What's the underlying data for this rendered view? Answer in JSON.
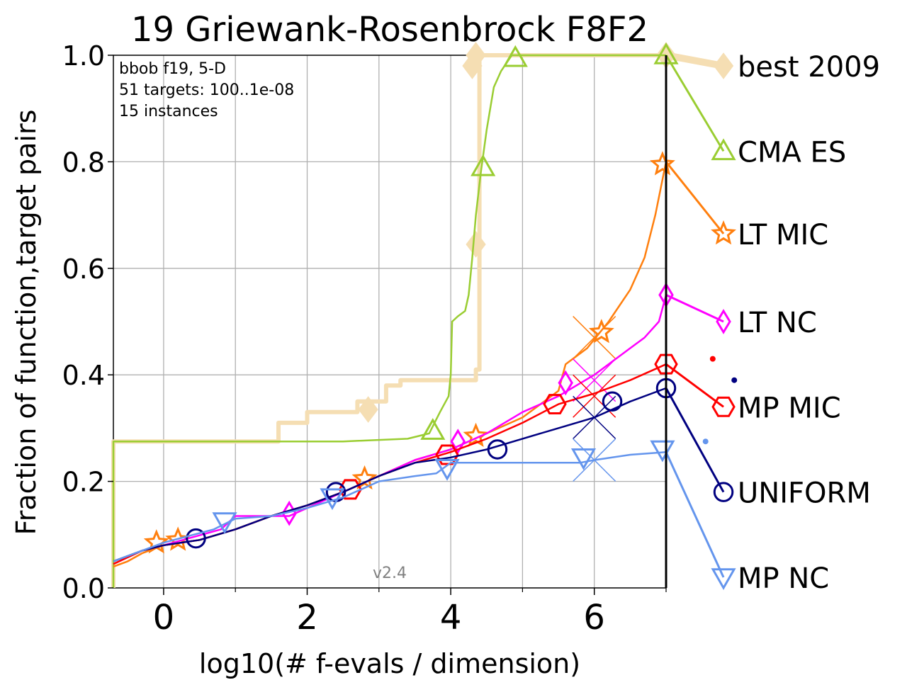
{
  "chart_data": {
    "type": "line",
    "title": "19 Griewank-Rosenbrock F8F2",
    "xlabel": "log10(# f-evals / dimension)",
    "ylabel": "Fraction of function,target pairs",
    "xlim": [
      -0.7,
      7.0
    ],
    "ylim": [
      0.0,
      1.0
    ],
    "xticks": [
      "0",
      "2",
      "4",
      "6"
    ],
    "yticks": [
      "0.0",
      "0.2",
      "0.4",
      "0.6",
      "0.8",
      "1.0"
    ],
    "grid": true,
    "info_lines": [
      "bbob f19, 5-D",
      "51 targets: 100..1e-08",
      "15 instances"
    ],
    "version": "v2.4",
    "budget_line_x": 7.0,
    "series": [
      {
        "name": "best 2009",
        "color": "#f5deb3",
        "marker": "diamond",
        "width": 6,
        "points": [
          [
            -0.7,
            0.0
          ],
          [
            -0.7,
            0.275
          ],
          [
            1.6,
            0.275
          ],
          [
            1.6,
            0.31
          ],
          [
            2.0,
            0.31
          ],
          [
            2.0,
            0.33
          ],
          [
            2.7,
            0.33
          ],
          [
            2.7,
            0.35
          ],
          [
            3.1,
            0.35
          ],
          [
            3.1,
            0.38
          ],
          [
            3.3,
            0.38
          ],
          [
            3.3,
            0.39
          ],
          [
            4.35,
            0.39
          ],
          [
            4.35,
            0.41
          ],
          [
            4.4,
            0.41
          ],
          [
            4.4,
            1.0
          ],
          [
            7.0,
            1.0
          ]
        ],
        "markers": [
          [
            2.85,
            0.335
          ],
          [
            4.35,
            0.645
          ],
          [
            4.3,
            0.98
          ],
          [
            4.35,
            1.0
          ],
          [
            7.0,
            1.0
          ]
        ],
        "end": [
          7.8,
          0.98
        ],
        "end_y": 0.98
      },
      {
        "name": "CMA ES",
        "color": "#9acd32",
        "marker": "triangle-up",
        "width": 2.5,
        "points": [
          [
            -0.7,
            0.0
          ],
          [
            -0.7,
            0.275
          ],
          [
            2.5,
            0.275
          ],
          [
            3.4,
            0.28
          ],
          [
            3.7,
            0.29
          ],
          [
            3.85,
            0.33
          ],
          [
            3.97,
            0.36
          ],
          [
            4.0,
            0.4
          ],
          [
            4.02,
            0.5
          ],
          [
            4.1,
            0.51
          ],
          [
            4.2,
            0.52
          ],
          [
            4.25,
            0.55
          ],
          [
            4.3,
            0.62
          ],
          [
            4.35,
            0.7
          ],
          [
            4.42,
            0.78
          ],
          [
            4.5,
            0.86
          ],
          [
            4.6,
            0.94
          ],
          [
            4.7,
            0.97
          ],
          [
            4.85,
            1.0
          ],
          [
            7.0,
            1.0
          ]
        ],
        "markers": [
          [
            3.75,
            0.295
          ],
          [
            4.45,
            0.79
          ],
          [
            4.9,
            0.995
          ],
          [
            7.0,
            1.0
          ]
        ],
        "end": [
          7.8,
          0.82
        ],
        "end_y": 0.82
      },
      {
        "name": "LT MIC",
        "color": "#ff7f0e",
        "marker": "star",
        "width": 2.5,
        "points": [
          [
            -0.7,
            0.04
          ],
          [
            -0.5,
            0.05
          ],
          [
            -0.3,
            0.065
          ],
          [
            0.0,
            0.08
          ],
          [
            0.5,
            0.09
          ],
          [
            1.0,
            0.11
          ],
          [
            1.5,
            0.135
          ],
          [
            2.0,
            0.155
          ],
          [
            2.5,
            0.18
          ],
          [
            3.0,
            0.21
          ],
          [
            3.5,
            0.24
          ],
          [
            4.0,
            0.26
          ],
          [
            4.5,
            0.29
          ],
          [
            5.0,
            0.32
          ],
          [
            5.5,
            0.37
          ],
          [
            5.6,
            0.42
          ],
          [
            5.9,
            0.45
          ],
          [
            6.2,
            0.5
          ],
          [
            6.5,
            0.56
          ],
          [
            6.7,
            0.62
          ],
          [
            6.85,
            0.7
          ],
          [
            7.0,
            0.8
          ]
        ],
        "markers": [
          [
            -0.1,
            0.085
          ],
          [
            0.2,
            0.09
          ],
          [
            2.8,
            0.205
          ],
          [
            4.35,
            0.285
          ],
          [
            6.1,
            0.48
          ],
          [
            6.95,
            0.795
          ]
        ],
        "cross": [
          6.0,
          0.47
        ],
        "end": [
          7.8,
          0.665
        ],
        "end_y": 0.665
      },
      {
        "name": "LT NC",
        "color": "#ff00ff",
        "marker": "diamond-thin",
        "width": 2.5,
        "points": [
          [
            -0.7,
            0.045
          ],
          [
            -0.3,
            0.07
          ],
          [
            0.0,
            0.08
          ],
          [
            0.8,
            0.11
          ],
          [
            1.0,
            0.135
          ],
          [
            1.75,
            0.135
          ],
          [
            2.0,
            0.15
          ],
          [
            2.5,
            0.18
          ],
          [
            3.0,
            0.21
          ],
          [
            3.5,
            0.24
          ],
          [
            4.0,
            0.26
          ],
          [
            4.5,
            0.29
          ],
          [
            5.0,
            0.33
          ],
          [
            5.5,
            0.36
          ],
          [
            6.0,
            0.4
          ],
          [
            6.4,
            0.44
          ],
          [
            6.7,
            0.47
          ],
          [
            6.9,
            0.5
          ],
          [
            7.0,
            0.55
          ]
        ],
        "markers": [
          [
            1.75,
            0.14
          ],
          [
            4.1,
            0.275
          ],
          [
            5.6,
            0.385
          ],
          [
            7.0,
            0.55
          ]
        ],
        "cross": [
          6.0,
          0.39
        ],
        "end": [
          7.8,
          0.5
        ],
        "end_y": 0.5
      },
      {
        "name": "MP MIC",
        "color": "#ff0000",
        "marker": "hexagon",
        "width": 2.5,
        "points": [
          [
            -0.7,
            0.045
          ],
          [
            -0.3,
            0.07
          ],
          [
            0.0,
            0.08
          ],
          [
            0.5,
            0.09
          ],
          [
            1.0,
            0.11
          ],
          [
            1.5,
            0.135
          ],
          [
            2.0,
            0.155
          ],
          [
            2.5,
            0.18
          ],
          [
            3.0,
            0.21
          ],
          [
            3.5,
            0.235
          ],
          [
            4.0,
            0.255
          ],
          [
            4.5,
            0.28
          ],
          [
            5.0,
            0.31
          ],
          [
            5.5,
            0.345
          ],
          [
            6.0,
            0.365
          ],
          [
            6.5,
            0.39
          ],
          [
            7.0,
            0.42
          ]
        ],
        "markers": [
          [
            2.6,
            0.185
          ],
          [
            3.95,
            0.25
          ],
          [
            5.45,
            0.345
          ],
          [
            7.0,
            0.42
          ]
        ],
        "cross": [
          6.0,
          0.36
        ],
        "dot": [
          7.65,
          0.43
        ],
        "end": [
          7.8,
          0.34
        ],
        "end_y": 0.34
      },
      {
        "name": "UNIFORM",
        "color": "#000080",
        "marker": "circle",
        "width": 2.5,
        "points": [
          [
            -0.7,
            0.05
          ],
          [
            -0.3,
            0.07
          ],
          [
            0.0,
            0.08
          ],
          [
            0.5,
            0.09
          ],
          [
            1.0,
            0.11
          ],
          [
            1.5,
            0.135
          ],
          [
            2.0,
            0.155
          ],
          [
            2.5,
            0.18
          ],
          [
            3.0,
            0.21
          ],
          [
            3.5,
            0.235
          ],
          [
            4.0,
            0.245
          ],
          [
            4.5,
            0.26
          ],
          [
            5.0,
            0.28
          ],
          [
            5.5,
            0.3
          ],
          [
            6.0,
            0.32
          ],
          [
            6.5,
            0.35
          ],
          [
            7.0,
            0.375
          ]
        ],
        "markers": [
          [
            0.45,
            0.093
          ],
          [
            2.4,
            0.18
          ],
          [
            4.65,
            0.26
          ],
          [
            6.25,
            0.35
          ],
          [
            7.0,
            0.375
          ]
        ],
        "cross": [
          6.0,
          0.32
        ],
        "dot": [
          7.95,
          0.39
        ],
        "end": [
          7.8,
          0.18
        ],
        "end_y": 0.18
      },
      {
        "name": "MP NC",
        "color": "#6495ed",
        "marker": "triangle-down",
        "width": 2.5,
        "points": [
          [
            -0.7,
            0.05
          ],
          [
            -0.3,
            0.07
          ],
          [
            0.0,
            0.085
          ],
          [
            0.7,
            0.11
          ],
          [
            1.0,
            0.13
          ],
          [
            1.5,
            0.135
          ],
          [
            2.0,
            0.15
          ],
          [
            2.5,
            0.17
          ],
          [
            3.0,
            0.2
          ],
          [
            3.5,
            0.21
          ],
          [
            3.8,
            0.215
          ],
          [
            4.0,
            0.235
          ],
          [
            5.8,
            0.235
          ],
          [
            6.0,
            0.24
          ],
          [
            6.5,
            0.25
          ],
          [
            7.0,
            0.255
          ]
        ],
        "markers": [
          [
            0.85,
            0.125
          ],
          [
            2.35,
            0.17
          ],
          [
            3.95,
            0.225
          ],
          [
            5.85,
            0.245
          ],
          [
            6.95,
            0.26
          ]
        ],
        "cross": [
          6.0,
          0.24
        ],
        "dot": [
          7.55,
          0.275
        ],
        "end": [
          7.8,
          0.02
        ],
        "end_y": 0.02
      }
    ]
  }
}
